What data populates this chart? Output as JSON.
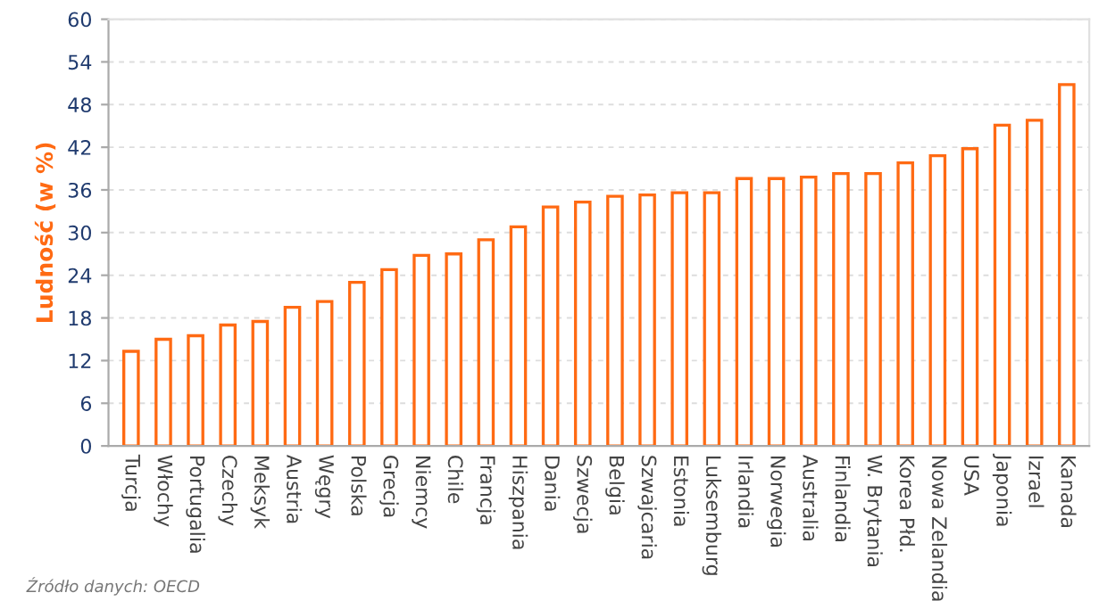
{
  "chart_data": {
    "type": "bar",
    "ylabel": "Ludność (w %)",
    "categories": [
      "Turcja",
      "Włochy",
      "Portugalia",
      "Czechy",
      "Meksyk",
      "Austria",
      "Węgry",
      "Polska",
      "Grecja",
      "Niemcy",
      "Chile",
      "Francja",
      "Hiszpania",
      "Dania",
      "Szwecja",
      "Belgia",
      "Szwajcaria",
      "Estonia",
      "Luksemburg",
      "Irlandia",
      "Norwegia",
      "Australia",
      "Finlandia",
      "W. Brytania",
      "Korea Płd.",
      "Nowa Zelandia",
      "USA",
      "Japonia",
      "Izrael",
      "Kanada"
    ],
    "values": [
      13.3,
      15.0,
      15.5,
      17.0,
      17.5,
      19.5,
      20.3,
      23.0,
      24.8,
      26.8,
      27.0,
      29.0,
      30.8,
      33.6,
      34.3,
      35.1,
      35.3,
      35.6,
      35.6,
      37.6,
      37.6,
      37.8,
      38.3,
      38.3,
      39.8,
      40.8,
      41.8,
      45.1,
      45.8,
      50.8
    ],
    "color": "#ff6a13",
    "ylim": [
      0,
      60
    ],
    "yticks": [
      0,
      6,
      12,
      18,
      24,
      30,
      36,
      42,
      48,
      54,
      60
    ],
    "grid": "y",
    "annotations": [
      "Źródło danych: OECD"
    ]
  }
}
